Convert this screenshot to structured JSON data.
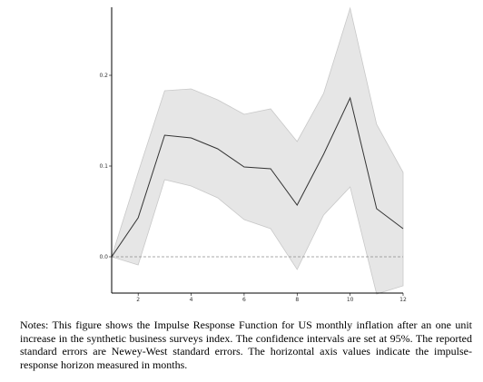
{
  "chart_data": {
    "type": "line",
    "title": "",
    "xlabel": "",
    "ylabel": "",
    "x": [
      1,
      2,
      3,
      4,
      5,
      6,
      7,
      8,
      9,
      10,
      11,
      12
    ],
    "xlim": [
      1,
      12
    ],
    "ylim": [
      -0.04,
      0.275
    ],
    "xticks": [
      2,
      4,
      6,
      8,
      10,
      12
    ],
    "xtick_labels": [
      "2",
      "4",
      "6",
      "8",
      "10",
      "12"
    ],
    "yticks": [
      0.0,
      0.1,
      0.2
    ],
    "ytick_labels": [
      "0.0",
      "0.1",
      "0.2"
    ],
    "grid": false,
    "reference_line": {
      "y": 0.0,
      "style": "dashed"
    },
    "series": [
      {
        "role": "point_estimate",
        "values": [
          0.0,
          0.043,
          0.134,
          0.131,
          0.119,
          0.099,
          0.097,
          0.057,
          0.113,
          0.175,
          0.053,
          0.031
        ]
      }
    ],
    "confidence_band": {
      "upper": [
        0.0,
        0.093,
        0.183,
        0.185,
        0.173,
        0.157,
        0.163,
        0.127,
        0.18,
        0.274,
        0.146,
        0.093
      ],
      "lower": [
        0.0,
        -0.009,
        0.085,
        0.078,
        0.065,
        0.041,
        0.031,
        -0.014,
        0.046,
        0.077,
        -0.041,
        -0.032
      ]
    },
    "colors": {
      "band": "#e6e6e6",
      "band_edge": "#c8c8c8",
      "line": "#333333",
      "zero_line": "#8c8c8c"
    }
  },
  "notes": "Notes: This figure shows the Impulse Response Function for US monthly inflation after an one unit increase in the synthetic business surveys index. The confidence intervals are set at 95%. The reported standard errors are Newey-West standard errors. The horizontal axis values indicate the impulse-response horizon measured in months."
}
